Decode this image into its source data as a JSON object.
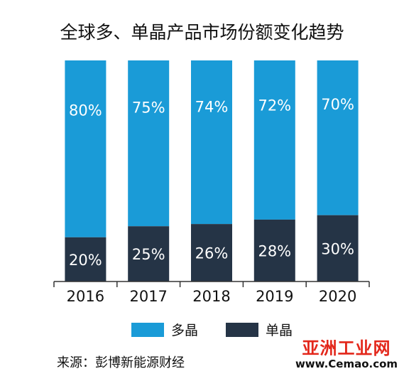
{
  "title": "全球多、单晶产品市场份额变化趋势",
  "source": "来源：彭博新能源财经",
  "watermark": {
    "title": "亚洲工业网",
    "url": "www.Cemao.com"
  },
  "colors": {
    "multi": "#1a9bd7",
    "mono": "#253446",
    "label_on_multi": "#ffffff",
    "label_on_mono": "#ffffff"
  },
  "legend": [
    {
      "name": "多晶",
      "color": "#1a9bd7"
    },
    {
      "name": "单晶",
      "color": "#253446"
    }
  ],
  "chart_data": {
    "type": "bar",
    "stacked": true,
    "title": "全球多、单晶产品市场份额变化趋势",
    "categories": [
      "2016",
      "2017",
      "2018",
      "2019",
      "2020"
    ],
    "series": [
      {
        "name": "单晶",
        "values": [
          20,
          25,
          26,
          28,
          30
        ],
        "labels": [
          "20%",
          "25%",
          "26%",
          "28%",
          "30%"
        ]
      },
      {
        "name": "多晶",
        "values": [
          80,
          75,
          74,
          72,
          70
        ],
        "labels": [
          "80%",
          "75%",
          "74%",
          "72%",
          "70%"
        ]
      }
    ],
    "ylim": [
      0,
      100
    ],
    "legend_position": "bottom",
    "grid": false
  }
}
